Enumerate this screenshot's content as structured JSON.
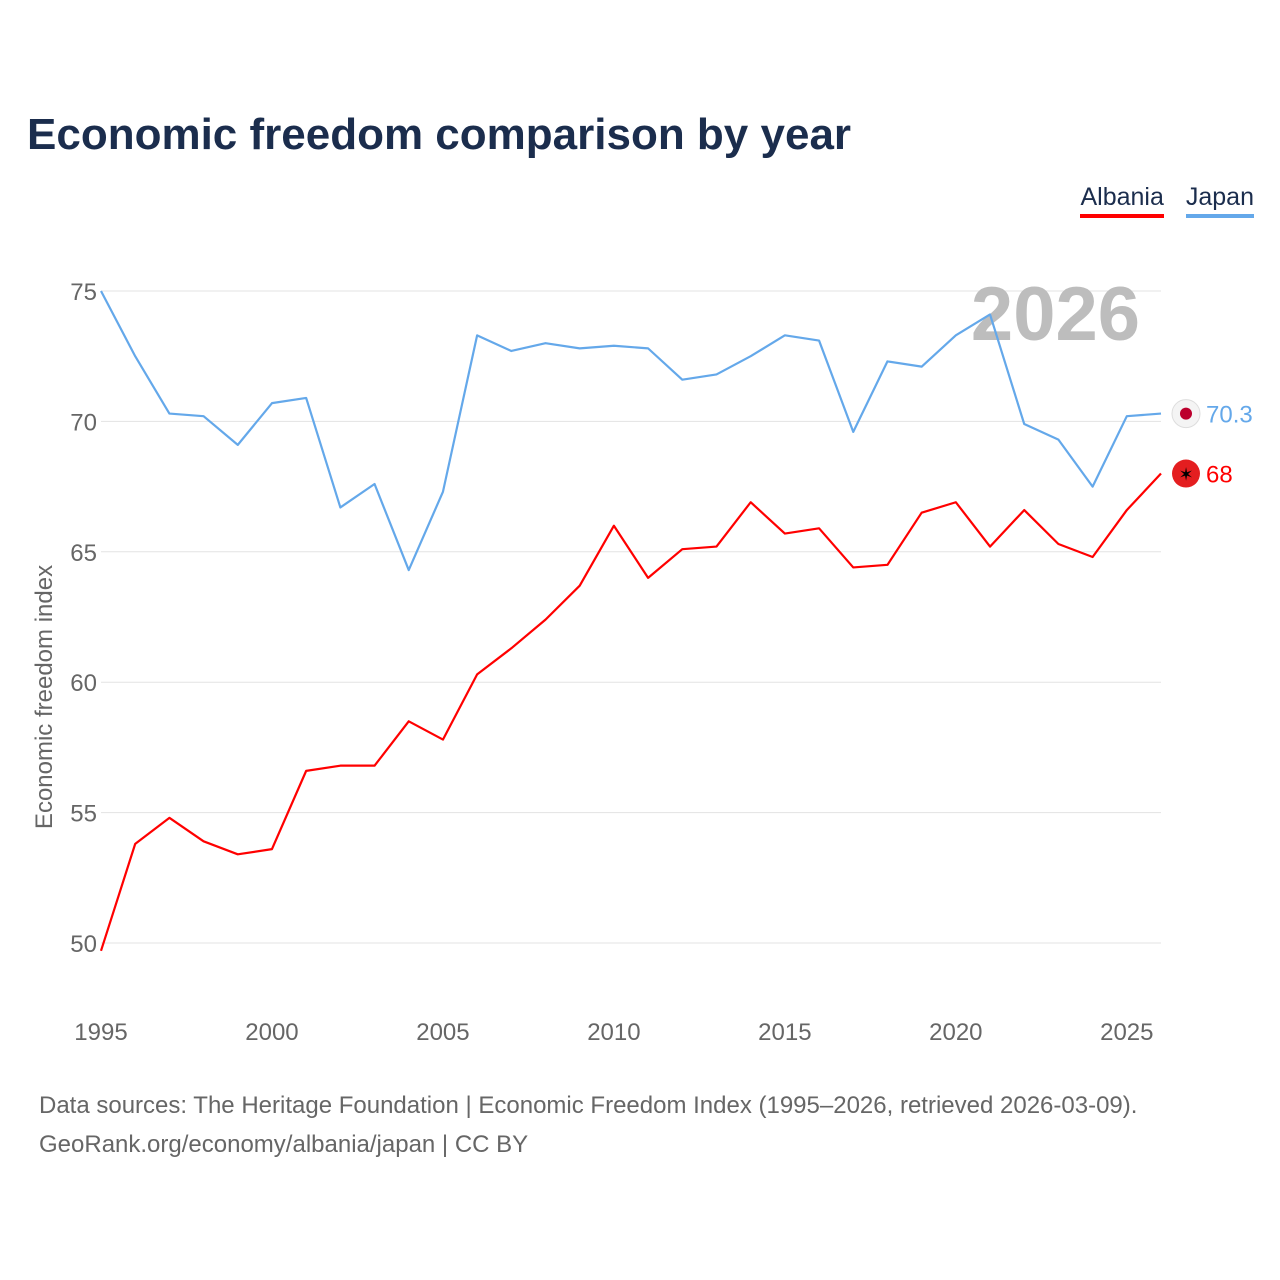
{
  "chart_data": {
    "type": "line",
    "title": "Economic freedom comparison by year",
    "xlabel": "",
    "ylabel": "Economic freedom index",
    "xlim": [
      1995,
      2026
    ],
    "ylim": [
      50,
      75
    ],
    "xticks": [
      1995,
      2000,
      2005,
      2010,
      2015,
      2020,
      2025
    ],
    "yticks": [
      50,
      55,
      60,
      65,
      70,
      75
    ],
    "grid": true,
    "legend_position": "top-right",
    "year_watermark": "2026",
    "x": [
      1995,
      1996,
      1997,
      1998,
      1999,
      2000,
      2001,
      2002,
      2003,
      2004,
      2005,
      2006,
      2007,
      2008,
      2009,
      2010,
      2011,
      2012,
      2013,
      2014,
      2015,
      2016,
      2017,
      2018,
      2019,
      2020,
      2021,
      2022,
      2023,
      2024,
      2025,
      2026
    ],
    "series": [
      {
        "name": "Albania",
        "color": "#ff0000",
        "end_label": "68",
        "values": [
          49.7,
          53.8,
          54.8,
          53.9,
          53.4,
          53.6,
          56.6,
          56.8,
          56.8,
          58.5,
          57.8,
          60.3,
          61.3,
          62.4,
          63.7,
          66.0,
          64.0,
          65.1,
          65.2,
          66.9,
          65.7,
          65.9,
          64.4,
          64.5,
          66.5,
          66.9,
          65.2,
          66.6,
          65.3,
          64.8,
          66.6,
          68.0
        ]
      },
      {
        "name": "Japan",
        "color": "#64a8ea",
        "end_label": "70.3",
        "values": [
          75.0,
          72.5,
          70.3,
          70.2,
          69.1,
          70.7,
          70.9,
          66.7,
          67.6,
          64.3,
          67.3,
          73.3,
          72.7,
          73.0,
          72.8,
          72.9,
          72.8,
          71.6,
          71.8,
          72.5,
          73.3,
          73.1,
          69.6,
          72.3,
          72.1,
          73.3,
          74.1,
          69.9,
          69.3,
          67.5,
          70.2,
          70.3
        ]
      }
    ]
  },
  "source": {
    "line1": "Data sources: The Heritage Foundation | Economic Freedom Index (1995–2026, retrieved 2026-03-09).",
    "line2": "GeoRank.org/economy/albania/japan | CC BY"
  }
}
